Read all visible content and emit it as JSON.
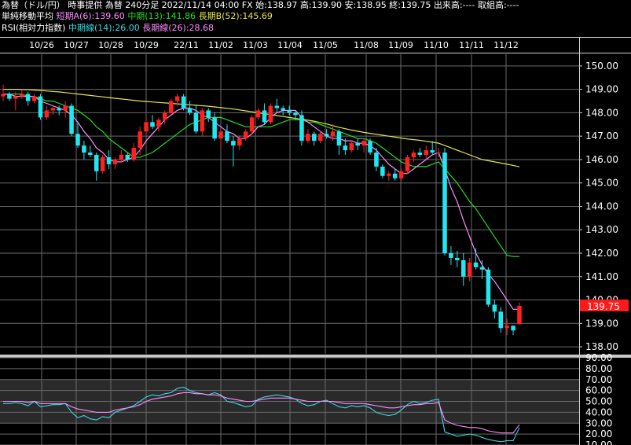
{
  "header": {
    "line1": "為替（ドル/円） 時事提供 為替 240分足 2022/11/14 04:00 FX 始:138.97 高:139.90 安:138.95 終:139.75 出来高:---- 取組高:----",
    "sma_title": "単純移動平均",
    "sma_short": "短期A(6):139.60",
    "sma_mid": "中期(13):141.86",
    "sma_long": "長期B(52):145.69",
    "rsi_title": "RSI(相対力指数)",
    "rsi_mid": "中期線(14):26.00",
    "rsi_long": "長期線(26):28.68"
  },
  "colors": {
    "up": "#ff2020",
    "down": "#22e6f0",
    "sma_short": "#ff8cff",
    "sma_mid": "#22dd22",
    "sma_long": "#e6e64d",
    "rsi_mid": "#3ad8e6",
    "rsi_long": "#ff8cff",
    "last_price_bg": "#ff1a1a"
  },
  "chart_data": [
    {
      "type": "candlestick",
      "categories": [
        "10/26",
        "10/27",
        "10/28",
        "10/29",
        "22/11",
        "11/02",
        "11/03",
        "11/04",
        "11/05",
        "11/08",
        "11/09",
        "11/10",
        "11/11",
        "11/12"
      ],
      "ylim": [
        137.7,
        150.5
      ],
      "yticks": [
        "150.00",
        "149.00",
        "148.00",
        "147.00",
        "146.00",
        "145.00",
        "144.00",
        "143.00",
        "142.00",
        "141.00",
        "140.00",
        "139.00",
        "138.00"
      ],
      "last_price": "139.75",
      "ohlc": [
        [
          148.7,
          149.2,
          148.5,
          148.8
        ],
        [
          148.8,
          148.9,
          148.5,
          148.6
        ],
        [
          148.6,
          148.9,
          148.1,
          148.7
        ],
        [
          148.7,
          149.0,
          148.6,
          148.8
        ],
        [
          148.8,
          148.9,
          148.3,
          148.5
        ],
        [
          148.5,
          148.8,
          148.4,
          148.7
        ],
        [
          148.7,
          148.8,
          147.7,
          147.8
        ],
        [
          147.8,
          148.3,
          147.7,
          148.1
        ],
        [
          148.1,
          148.3,
          147.9,
          148.2
        ],
        [
          148.2,
          148.3,
          147.9,
          148.1
        ],
        [
          148.1,
          148.5,
          147.8,
          148.3
        ],
        [
          148.3,
          148.4,
          147.0,
          147.1
        ],
        [
          147.1,
          147.6,
          146.5,
          146.6
        ],
        [
          146.6,
          146.8,
          146.0,
          146.3
        ],
        [
          146.3,
          146.6,
          146.1,
          146.2
        ],
        [
          146.2,
          146.3,
          145.1,
          145.5
        ],
        [
          145.5,
          146.2,
          145.4,
          146.1
        ],
        [
          146.1,
          146.4,
          145.6,
          145.8
        ],
        [
          145.8,
          146.1,
          145.6,
          146.0
        ],
        [
          146.0,
          146.4,
          145.9,
          146.2
        ],
        [
          146.2,
          146.3,
          145.9,
          146.0
        ],
        [
          146.0,
          146.7,
          145.9,
          146.5
        ],
        [
          146.5,
          147.4,
          146.2,
          147.2
        ],
        [
          147.2,
          147.8,
          147.1,
          147.6
        ],
        [
          147.6,
          147.9,
          147.3,
          147.4
        ],
        [
          147.4,
          147.8,
          147.2,
          147.7
        ],
        [
          147.7,
          148.1,
          147.5,
          148.0
        ],
        [
          148.0,
          148.6,
          147.9,
          148.5
        ],
        [
          148.5,
          148.8,
          148.3,
          148.7
        ],
        [
          148.7,
          148.8,
          148.1,
          148.2
        ],
        [
          148.2,
          148.5,
          147.9,
          148.0
        ],
        [
          148.0,
          148.3,
          147.1,
          147.2
        ],
        [
          147.2,
          148.2,
          147.0,
          148.1
        ],
        [
          148.1,
          148.2,
          147.6,
          147.8
        ],
        [
          147.8,
          148.0,
          146.8,
          146.9
        ],
        [
          146.9,
          147.3,
          146.5,
          147.2
        ],
        [
          147.2,
          147.5,
          146.7,
          146.8
        ],
        [
          146.8,
          147.0,
          145.7,
          146.6
        ],
        [
          146.6,
          147.0,
          146.4,
          146.9
        ],
        [
          146.9,
          147.3,
          146.8,
          147.2
        ],
        [
          147.2,
          147.9,
          147.1,
          147.8
        ],
        [
          147.8,
          148.2,
          147.7,
          148.1
        ],
        [
          148.1,
          148.4,
          147.5,
          147.6
        ],
        [
          147.6,
          148.4,
          147.5,
          148.3
        ],
        [
          148.3,
          148.6,
          148.0,
          148.2
        ],
        [
          148.2,
          148.3,
          147.9,
          148.1
        ],
        [
          148.1,
          148.3,
          147.9,
          148.0
        ],
        [
          148.0,
          148.1,
          147.7,
          147.9
        ],
        [
          147.9,
          148.1,
          146.6,
          146.8
        ],
        [
          146.8,
          147.3,
          146.7,
          147.1
        ],
        [
          147.1,
          147.2,
          146.6,
          146.8
        ],
        [
          146.8,
          147.2,
          146.7,
          147.1
        ],
        [
          147.1,
          147.3,
          146.9,
          147.0
        ],
        [
          147.0,
          147.5,
          146.8,
          147.2
        ],
        [
          147.2,
          147.3,
          146.2,
          146.6
        ],
        [
          146.6,
          146.9,
          146.2,
          146.4
        ],
        [
          146.4,
          146.8,
          146.3,
          146.7
        ],
        [
          146.7,
          146.9,
          146.4,
          146.6
        ],
        [
          146.6,
          146.9,
          146.3,
          146.8
        ],
        [
          146.8,
          146.9,
          146.2,
          146.3
        ],
        [
          146.3,
          146.5,
          145.5,
          145.7
        ],
        [
          145.7,
          145.8,
          145.2,
          145.3
        ],
        [
          145.3,
          145.5,
          145.1,
          145.4
        ],
        [
          145.4,
          145.6,
          145.1,
          145.2
        ],
        [
          145.2,
          145.6,
          145.1,
          145.5
        ],
        [
          145.5,
          146.2,
          145.4,
          146.1
        ],
        [
          146.1,
          146.4,
          145.9,
          146.3
        ],
        [
          146.3,
          146.5,
          146.1,
          146.2
        ],
        [
          146.2,
          146.6,
          146.0,
          146.4
        ],
        [
          146.4,
          146.8,
          146.2,
          146.3
        ],
        [
          146.3,
          146.5,
          146.1,
          146.3
        ],
        [
          146.3,
          146.5,
          141.9,
          142.0
        ],
        [
          142.0,
          142.3,
          141.5,
          141.8
        ],
        [
          141.8,
          142.1,
          141.4,
          141.7
        ],
        [
          141.7,
          142.0,
          140.6,
          141.0
        ],
        [
          141.0,
          141.8,
          140.8,
          141.6
        ],
        [
          141.6,
          142.2,
          141.3,
          141.4
        ],
        [
          141.4,
          141.7,
          140.9,
          141.3
        ],
        [
          141.3,
          141.4,
          139.7,
          139.8
        ],
        [
          139.8,
          140.0,
          139.2,
          139.5
        ],
        [
          139.5,
          139.7,
          138.6,
          138.8
        ],
        [
          138.8,
          139.2,
          138.5,
          138.9
        ],
        [
          138.9,
          138.9,
          138.5,
          138.7
        ],
        [
          138.97,
          139.9,
          138.95,
          139.75
        ]
      ],
      "sma_short": [
        148.8,
        148.8,
        148.7,
        148.7,
        148.7,
        148.7,
        148.5,
        148.4,
        148.3,
        148.2,
        148.1,
        147.9,
        147.6,
        147.2,
        146.9,
        146.5,
        146.3,
        146.0,
        145.9,
        145.9,
        146.0,
        146.1,
        146.4,
        146.8,
        147.1,
        147.4,
        147.7,
        147.9,
        148.1,
        148.2,
        148.2,
        148.1,
        147.9,
        147.8,
        147.6,
        147.4,
        147.2,
        147.1,
        146.9,
        146.9,
        147.1,
        147.4,
        147.5,
        147.8,
        148.0,
        148.1,
        148.1,
        148.1,
        147.8,
        147.6,
        147.4,
        147.2,
        147.0,
        146.9,
        146.9,
        146.8,
        146.8,
        146.7,
        146.7,
        146.6,
        146.4,
        146.1,
        145.8,
        145.6,
        145.4,
        145.4,
        145.6,
        145.8,
        146.0,
        146.2,
        146.3,
        145.6,
        144.8,
        144.2,
        143.4,
        142.7,
        142.0,
        141.5,
        141.1,
        140.8,
        140.4,
        140.0,
        139.6,
        139.6
      ],
      "sma_mid": [
        148.8,
        148.8,
        148.8,
        148.8,
        148.7,
        148.7,
        148.6,
        148.5,
        148.5,
        148.4,
        148.3,
        148.2,
        148.1,
        147.9,
        147.7,
        147.4,
        147.2,
        146.9,
        146.7,
        146.5,
        146.3,
        146.1,
        146.1,
        146.2,
        146.3,
        146.5,
        146.7,
        146.9,
        147.1,
        147.3,
        147.5,
        147.6,
        147.7,
        147.8,
        147.8,
        147.8,
        147.7,
        147.6,
        147.5,
        147.4,
        147.4,
        147.4,
        147.4,
        147.4,
        147.5,
        147.6,
        147.7,
        147.7,
        147.7,
        147.6,
        147.6,
        147.5,
        147.4,
        147.3,
        147.2,
        147.1,
        147.0,
        146.9,
        146.9,
        146.8,
        146.7,
        146.5,
        146.3,
        146.1,
        145.9,
        145.8,
        145.7,
        145.7,
        145.7,
        145.8,
        145.9,
        145.6,
        145.3,
        145.0,
        144.6,
        144.2,
        143.9,
        143.5,
        143.1,
        142.7,
        142.3,
        141.9,
        141.86,
        141.86
      ],
      "sma_long": [
        149.0,
        149.0,
        149.0,
        148.99,
        148.98,
        148.97,
        148.95,
        148.93,
        148.91,
        148.89,
        148.86,
        148.83,
        148.8,
        148.77,
        148.74,
        148.71,
        148.68,
        148.65,
        148.62,
        148.59,
        148.56,
        148.53,
        148.5,
        148.48,
        148.46,
        148.44,
        148.42,
        148.4,
        148.38,
        148.36,
        148.34,
        148.32,
        148.3,
        148.28,
        148.25,
        148.22,
        148.19,
        148.16,
        148.12,
        148.08,
        148.04,
        148.0,
        147.96,
        147.92,
        147.88,
        147.84,
        147.8,
        147.76,
        147.72,
        147.68,
        147.64,
        147.58,
        147.52,
        147.45,
        147.38,
        147.32,
        147.26,
        147.21,
        147.16,
        147.12,
        147.08,
        147.04,
        147.0,
        146.96,
        146.92,
        146.88,
        146.85,
        146.82,
        146.78,
        146.74,
        146.7,
        146.6,
        146.5,
        146.4,
        146.3,
        146.2,
        146.1,
        146.0,
        145.95,
        145.9,
        145.85,
        145.8,
        145.75,
        145.69
      ]
    },
    {
      "type": "line",
      "title": "RSI",
      "ylim": [
        10,
        90
      ],
      "yticks": [
        "90.00",
        "80.00",
        "70.00",
        "60.00",
        "50.00",
        "40.00",
        "30.00",
        "20.00",
        "10.00"
      ],
      "series": [
        {
          "name": "中期線(14)",
          "values": [
            48,
            48,
            49,
            48,
            46,
            50,
            45,
            46,
            47,
            47,
            48,
            40,
            35,
            37,
            34,
            33,
            36,
            35,
            40,
            42,
            44,
            46,
            50,
            54,
            56,
            55,
            57,
            58,
            62,
            63,
            60,
            58,
            57,
            56,
            58,
            56,
            50,
            49,
            47,
            45,
            46,
            52,
            54,
            55,
            56,
            55,
            54,
            52,
            48,
            46,
            47,
            50,
            51,
            48,
            45,
            44,
            46,
            45,
            46,
            44,
            40,
            38,
            37,
            38,
            42,
            47,
            50,
            48,
            49,
            51,
            52,
            22,
            20,
            18,
            19,
            20,
            19,
            17,
            15,
            14,
            13,
            14,
            14,
            26
          ]
        },
        {
          "name": "長期線(26)",
          "values": [
            50,
            50,
            50,
            50,
            49,
            50,
            48,
            48,
            48,
            48,
            48,
            45,
            43,
            42,
            41,
            40,
            40,
            40,
            42,
            43,
            44,
            45,
            47,
            50,
            52,
            53,
            54,
            55,
            57,
            58,
            58,
            57,
            57,
            56,
            56,
            55,
            53,
            52,
            51,
            50,
            50,
            51,
            52,
            53,
            53,
            53,
            53,
            52,
            51,
            50,
            50,
            50,
            50,
            50,
            49,
            48,
            48,
            48,
            48,
            47,
            46,
            45,
            44,
            44,
            45,
            46,
            47,
            47,
            48,
            48,
            49,
            33,
            30,
            28,
            27,
            26,
            26,
            25,
            23,
            22,
            21,
            21,
            21,
            28.68
          ]
        }
      ]
    }
  ]
}
